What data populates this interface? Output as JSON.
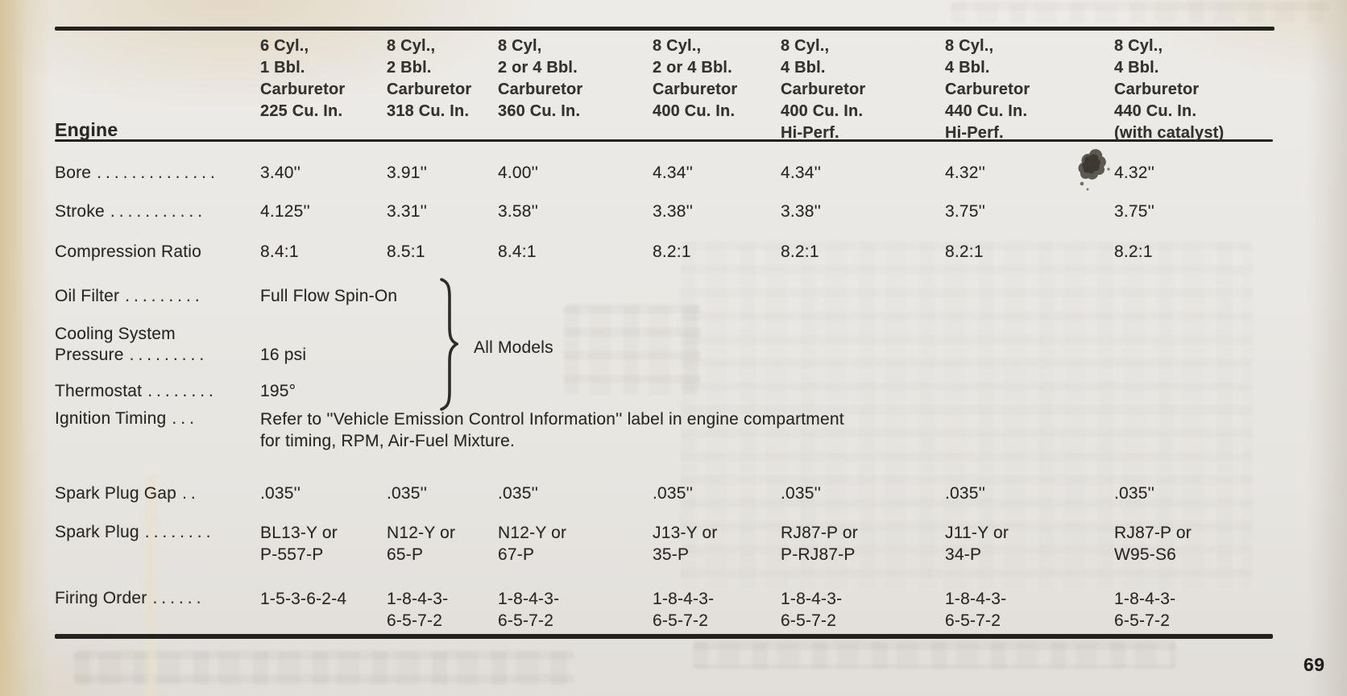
{
  "page": {
    "number": "69"
  },
  "section": {
    "title": "Engine"
  },
  "table": {
    "columns": [
      {
        "lines": [
          "6 Cyl.,",
          "1 Bbl.",
          "Carburetor",
          "225 Cu. In."
        ]
      },
      {
        "lines": [
          "8 Cyl.,",
          "2 Bbl.",
          "Carburetor",
          "318 Cu. In."
        ]
      },
      {
        "lines": [
          "8 Cyl,",
          "2 or 4 Bbl.",
          "Carburetor",
          "360 Cu. In."
        ]
      },
      {
        "lines": [
          "8 Cyl.,",
          "2 or 4 Bbl.",
          "Carburetor",
          "400 Cu. In."
        ]
      },
      {
        "lines": [
          "8 Cyl.,",
          "4 Bbl.",
          "Carburetor",
          "400 Cu. In.",
          "Hi-Perf."
        ]
      },
      {
        "lines": [
          "8 Cyl.,",
          "4 Bbl.",
          "Carburetor",
          "440 Cu. In.",
          "Hi-Perf."
        ]
      },
      {
        "lines": [
          "8 Cyl.,",
          "4 Bbl.",
          "Carburetor",
          "440 Cu. In.",
          "(with catalyst)"
        ]
      }
    ],
    "rows": {
      "bore": {
        "label": "Bore",
        "dots": "..............",
        "values": [
          "3.40''",
          "3.91''",
          "4.00''",
          "4.34''",
          "4.34''",
          "4.32''",
          "4.32''"
        ]
      },
      "stroke": {
        "label": "Stroke",
        "dots": "...........",
        "values": [
          "4.125''",
          "3.31''",
          "3.58''",
          "3.38''",
          "3.38''",
          "3.75''",
          "3.75''"
        ]
      },
      "compression": {
        "label": "Compression Ratio",
        "dots": "",
        "values": [
          "8.4:1",
          "8.5:1",
          "8.4:1",
          "8.2:1",
          "8.2:1",
          "8.2:1",
          "8.2:1"
        ]
      },
      "oil_filter": {
        "label": "Oil Filter",
        "dots": ".........",
        "value": "Full Flow Spin-On"
      },
      "cooling": {
        "label_line1": "Cooling System",
        "label_line2": "Pressure",
        "dots": ".........",
        "value": "16 psi"
      },
      "thermostat": {
        "label": "Thermostat",
        "dots": "........",
        "value": "195°"
      },
      "ignition": {
        "label": "Ignition Timing",
        "dots": "...",
        "value_lines": [
          "Refer to ''Vehicle Emission Control Information'' label in engine compartment",
          "for timing, RPM, Air-Fuel Mixture."
        ]
      },
      "gap": {
        "label": "Spark Plug Gap",
        "dots": "..",
        "values": [
          ".035''",
          ".035''",
          ".035''",
          ".035''",
          ".035''",
          ".035''",
          ".035''"
        ]
      },
      "plug": {
        "label": "Spark Plug",
        "dots": "........",
        "values": [
          [
            "BL13-Y or",
            "P-557-P"
          ],
          [
            "N12-Y or",
            "65-P"
          ],
          [
            "N12-Y or",
            "67-P"
          ],
          [
            "J13-Y or",
            "35-P"
          ],
          [
            "RJ87-P or",
            "P-RJ87-P"
          ],
          [
            "J11-Y or",
            "34-P"
          ],
          [
            "RJ87-P or",
            "W95-S6"
          ]
        ]
      },
      "firing": {
        "label": "Firing Order",
        "dots": "......",
        "values": [
          [
            "1-5-3-6-2-4"
          ],
          [
            "1-8-4-3-",
            "6-5-7-2"
          ],
          [
            "1-8-4-3-",
            "6-5-7-2"
          ],
          [
            "1-8-4-3-",
            "6-5-7-2"
          ],
          [
            "1-8-4-3-",
            "6-5-7-2"
          ],
          [
            "1-8-4-3-",
            "6-5-7-2"
          ],
          [
            "1-8-4-3-",
            "6-5-7-2"
          ]
        ]
      }
    },
    "brace_note": "All Models"
  }
}
